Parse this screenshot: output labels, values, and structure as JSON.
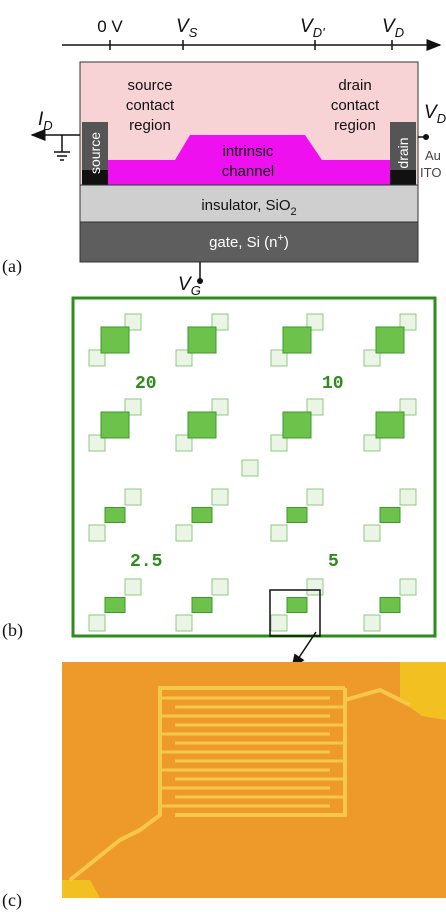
{
  "axis": {
    "ticks": [
      {
        "main": "0 V"
      },
      {
        "main": "V",
        "sub": "S"
      },
      {
        "main": "V",
        "sub": "D'"
      },
      {
        "main": "V",
        "sub": "D"
      }
    ]
  },
  "device": {
    "current": {
      "main": "I",
      "sub": "D"
    },
    "source": "source",
    "drain": "drain",
    "source_region": [
      "source",
      "contact",
      "region"
    ],
    "drain_region": [
      "drain",
      "contact",
      "region"
    ],
    "channel": [
      "intrinsic",
      "channel"
    ],
    "insulator": {
      "main": "insulator, SiO",
      "sub": "2"
    },
    "gate": {
      "main": "gate, Si (n",
      "sup": "+",
      "end": ")"
    },
    "gate_voltage": {
      "main": "V",
      "sub": "G"
    },
    "drain_voltage": {
      "main": "V",
      "sub": "D"
    },
    "electrode_materials": [
      "Au",
      "ITO"
    ]
  },
  "panels": [
    "(a)",
    "(b)",
    "(c)"
  ],
  "array_labels": [
    "20",
    "10",
    "2.5",
    "5"
  ]
}
